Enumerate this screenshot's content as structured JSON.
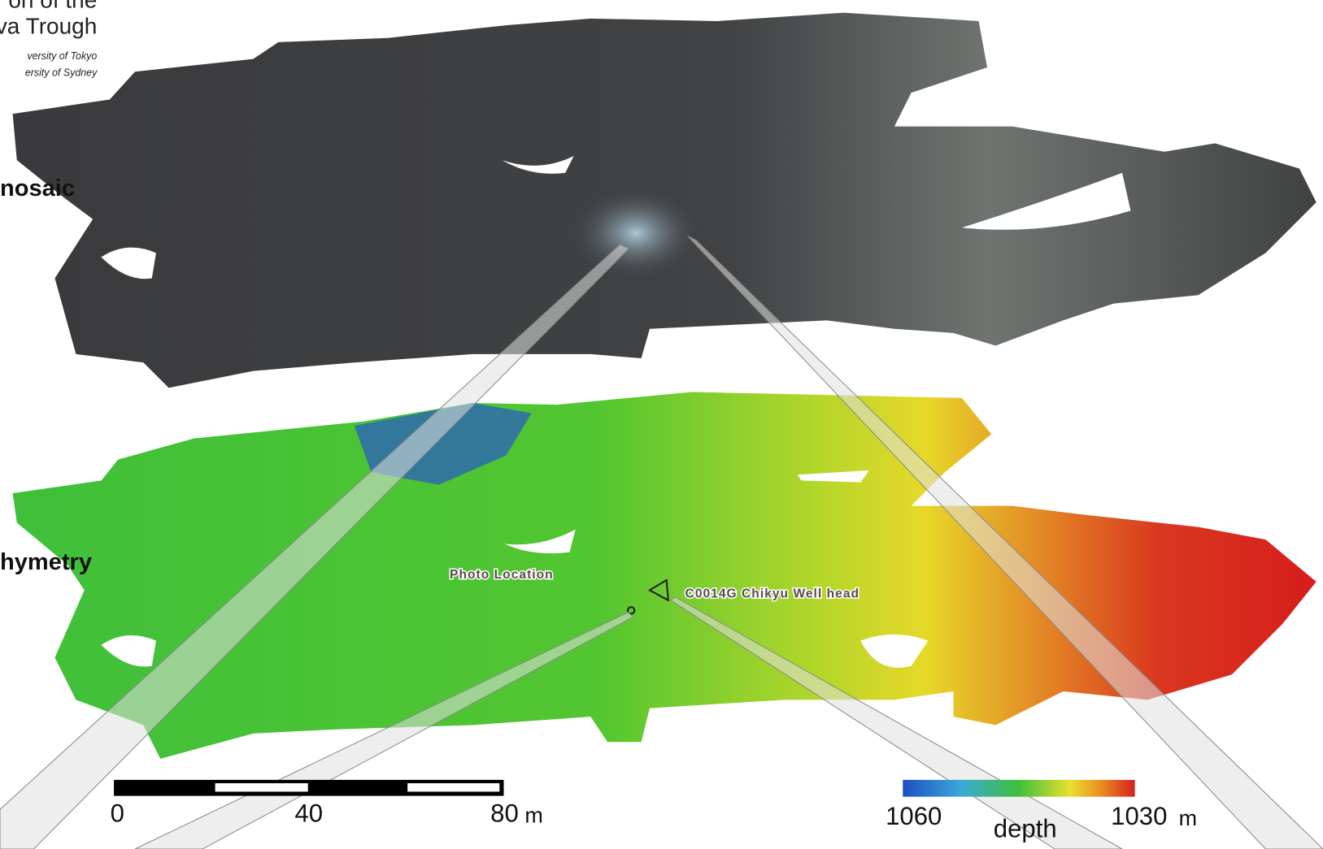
{
  "header": {
    "lines": [
      "on of the",
      "va Trough"
    ],
    "credits": [
      "versity of Tokyo",
      "ersity of Sydney"
    ]
  },
  "panels": {
    "mosaic": "nosaic",
    "bathymetry": "hymetry"
  },
  "annotations": {
    "photo_location": "Photo Location",
    "well_head": "C0014G Chikyu Well head"
  },
  "scale_bar": {
    "labels": [
      "0",
      "40",
      "80"
    ],
    "unit": "m"
  },
  "depth_legend": {
    "left": "1060",
    "title": "depth",
    "right": "1030",
    "unit": "m"
  }
}
